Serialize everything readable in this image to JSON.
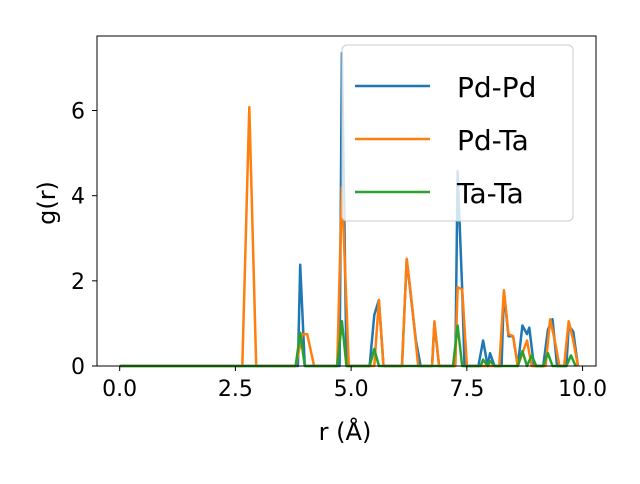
{
  "chart_data": {
    "type": "line",
    "title": "",
    "xlabel": "r (Å)",
    "ylabel": "g(r)",
    "xlim": [
      -0.49,
      10.29
    ],
    "ylim": [
      0,
      7.75
    ],
    "x_ticks": [
      "0.0",
      "2.5",
      "5.0",
      "7.5",
      "10.0"
    ],
    "x_tick_values": [
      0,
      2.5,
      5,
      7.5,
      10
    ],
    "y_ticks": [
      "0",
      "2",
      "4",
      "6"
    ],
    "y_tick_values": [
      0,
      2,
      4,
      6
    ],
    "grid": false,
    "legend_position": "top-right",
    "series": [
      {
        "name": "Pd-Pd",
        "color": "#1f77b4",
        "points": [
          [
            0,
            0
          ],
          [
            2.5,
            0
          ],
          [
            3.85,
            0
          ],
          [
            3.9,
            2.38
          ],
          [
            4.0,
            0
          ],
          [
            4.75,
            0
          ],
          [
            4.8,
            7.35
          ],
          [
            4.9,
            0
          ],
          [
            5.4,
            0
          ],
          [
            5.5,
            1.2
          ],
          [
            5.6,
            1.55
          ],
          [
            5.7,
            0
          ],
          [
            6.1,
            0
          ],
          [
            6.2,
            2.5
          ],
          [
            6.4,
            0.6
          ],
          [
            6.5,
            0
          ],
          [
            6.75,
            0
          ],
          [
            6.8,
            1.0
          ],
          [
            6.9,
            0
          ],
          [
            7.25,
            0
          ],
          [
            7.3,
            4.58
          ],
          [
            7.4,
            1.8
          ],
          [
            7.45,
            0
          ],
          [
            7.75,
            0
          ],
          [
            7.85,
            0.6
          ],
          [
            7.95,
            0
          ],
          [
            8.0,
            0.3
          ],
          [
            8.1,
            0
          ],
          [
            8.25,
            0
          ],
          [
            8.3,
            1.75
          ],
          [
            8.4,
            0.7
          ],
          [
            8.5,
            0.7
          ],
          [
            8.6,
            0
          ],
          [
            8.7,
            0.95
          ],
          [
            8.8,
            0.75
          ],
          [
            8.85,
            0.9
          ],
          [
            8.95,
            0
          ],
          [
            9.15,
            0
          ],
          [
            9.25,
            0.85
          ],
          [
            9.35,
            1.1
          ],
          [
            9.45,
            0
          ],
          [
            9.65,
            0
          ],
          [
            9.7,
            0.95
          ],
          [
            9.8,
            0.8
          ],
          [
            9.9,
            0
          ]
        ]
      },
      {
        "name": "Pd-Ta",
        "color": "#ff7f0e",
        "points": [
          [
            0,
            0
          ],
          [
            2.65,
            0
          ],
          [
            2.8,
            6.08
          ],
          [
            2.95,
            0
          ],
          [
            3.8,
            0
          ],
          [
            3.95,
            0.75
          ],
          [
            4.05,
            0.75
          ],
          [
            4.2,
            0
          ],
          [
            4.7,
            0
          ],
          [
            4.8,
            4.2
          ],
          [
            4.95,
            0
          ],
          [
            5.5,
            0
          ],
          [
            5.6,
            1.55
          ],
          [
            5.7,
            0
          ],
          [
            6.1,
            0
          ],
          [
            6.2,
            2.52
          ],
          [
            6.3,
            1.6
          ],
          [
            6.45,
            0
          ],
          [
            6.75,
            0
          ],
          [
            6.8,
            1.05
          ],
          [
            6.9,
            0
          ],
          [
            7.25,
            0
          ],
          [
            7.3,
            1.85
          ],
          [
            7.4,
            1.8
          ],
          [
            7.5,
            0
          ],
          [
            8.2,
            0
          ],
          [
            8.3,
            1.78
          ],
          [
            8.4,
            0.75
          ],
          [
            8.5,
            0.7
          ],
          [
            8.6,
            0
          ],
          [
            8.8,
            0.6
          ],
          [
            8.9,
            0
          ],
          [
            9.2,
            0
          ],
          [
            9.3,
            1.1
          ],
          [
            9.4,
            0.6
          ],
          [
            9.5,
            0
          ],
          [
            9.6,
            0
          ],
          [
            9.7,
            1.05
          ],
          [
            9.8,
            0.6
          ],
          [
            9.9,
            0
          ]
        ]
      },
      {
        "name": "Ta-Ta",
        "color": "#2ca02c",
        "points": [
          [
            0,
            0
          ],
          [
            3.8,
            0
          ],
          [
            3.9,
            0.78
          ],
          [
            4.0,
            0
          ],
          [
            4.7,
            0
          ],
          [
            4.8,
            1.05
          ],
          [
            4.9,
            0
          ],
          [
            5.4,
            0
          ],
          [
            5.5,
            0.4
          ],
          [
            5.6,
            0
          ],
          [
            7.2,
            0
          ],
          [
            7.3,
            0.95
          ],
          [
            7.4,
            0
          ],
          [
            7.8,
            0
          ],
          [
            7.85,
            0.15
          ],
          [
            7.95,
            0
          ],
          [
            8.0,
            0.12
          ],
          [
            8.1,
            0
          ],
          [
            8.6,
            0
          ],
          [
            8.7,
            0.35
          ],
          [
            8.8,
            0
          ],
          [
            8.9,
            0.25
          ],
          [
            9.0,
            0
          ],
          [
            9.15,
            0
          ],
          [
            9.25,
            0.3
          ],
          [
            9.35,
            0
          ],
          [
            9.65,
            0
          ],
          [
            9.75,
            0.25
          ],
          [
            9.85,
            0
          ]
        ]
      }
    ]
  }
}
